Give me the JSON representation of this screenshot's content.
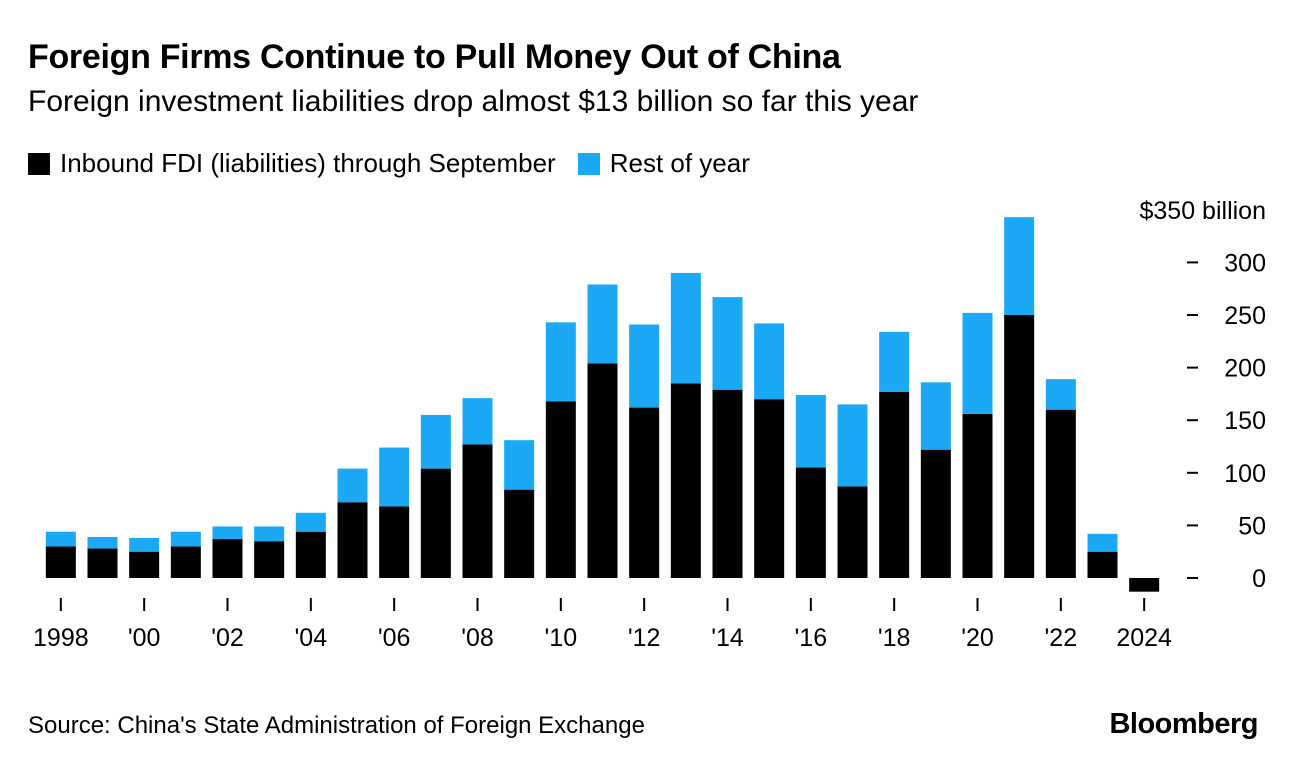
{
  "header": {
    "title": "Foreign Firms Continue to Pull Money Out of China",
    "subtitle": "Foreign investment liabilities drop almost $13 billion so far this year"
  },
  "legend": {
    "items": [
      {
        "label": "Inbound FDI (liabilities) through September",
        "color": "#000000"
      },
      {
        "label": "Rest of year",
        "color": "#1ba9f5"
      }
    ]
  },
  "footer": {
    "source": "Source: China's State Administration of Foreign Exchange",
    "brand": "Bloomberg"
  },
  "chart_data": {
    "type": "bar",
    "stacked": true,
    "title": "Foreign Firms Continue to Pull Money Out of China",
    "subtitle": "Foreign investment liabilities drop almost $13 billion so far this year",
    "categories": [
      "1998",
      "1999",
      "2000",
      "2001",
      "2002",
      "2003",
      "2004",
      "2005",
      "2006",
      "2007",
      "2008",
      "2009",
      "2010",
      "2011",
      "2012",
      "2013",
      "2014",
      "2015",
      "2016",
      "2017",
      "2018",
      "2019",
      "2020",
      "2021",
      "2022",
      "2023",
      "2024"
    ],
    "x_tick_labels": [
      {
        "index": 0,
        "label": "1998"
      },
      {
        "index": 2,
        "label": "'00"
      },
      {
        "index": 4,
        "label": "'02"
      },
      {
        "index": 6,
        "label": "'04"
      },
      {
        "index": 8,
        "label": "'06"
      },
      {
        "index": 10,
        "label": "'08"
      },
      {
        "index": 12,
        "label": "'10"
      },
      {
        "index": 14,
        "label": "'12"
      },
      {
        "index": 16,
        "label": "'14"
      },
      {
        "index": 18,
        "label": "'16"
      },
      {
        "index": 20,
        "label": "'18"
      },
      {
        "index": 22,
        "label": "'20"
      },
      {
        "index": 24,
        "label": "'22"
      },
      {
        "index": 26,
        "label": "2024"
      }
    ],
    "series": [
      {
        "name": "Inbound FDI (liabilities) through September",
        "color": "#000000",
        "values": [
          30,
          28,
          25,
          30,
          37,
          35,
          44,
          72,
          68,
          104,
          127,
          84,
          168,
          204,
          162,
          185,
          179,
          170,
          105,
          87,
          177,
          122,
          156,
          250,
          160,
          25,
          -13
        ]
      },
      {
        "name": "Rest of year",
        "color": "#1ba9f5",
        "values": [
          14,
          11,
          13,
          14,
          12,
          14,
          18,
          32,
          56,
          51,
          44,
          47,
          75,
          75,
          79,
          105,
          88,
          72,
          69,
          78,
          57,
          64,
          96,
          93,
          29,
          17,
          null
        ]
      }
    ],
    "y_ticks": [
      0,
      50,
      100,
      150,
      200,
      250,
      300,
      350
    ],
    "y_tick_labels": [
      "0",
      "50",
      "100",
      "150",
      "200",
      "250",
      "300",
      "$350 billion"
    ],
    "ylim": [
      -13,
      350
    ],
    "xlabel": "",
    "ylabel": "",
    "grid": false,
    "y_axis_position": "right"
  }
}
